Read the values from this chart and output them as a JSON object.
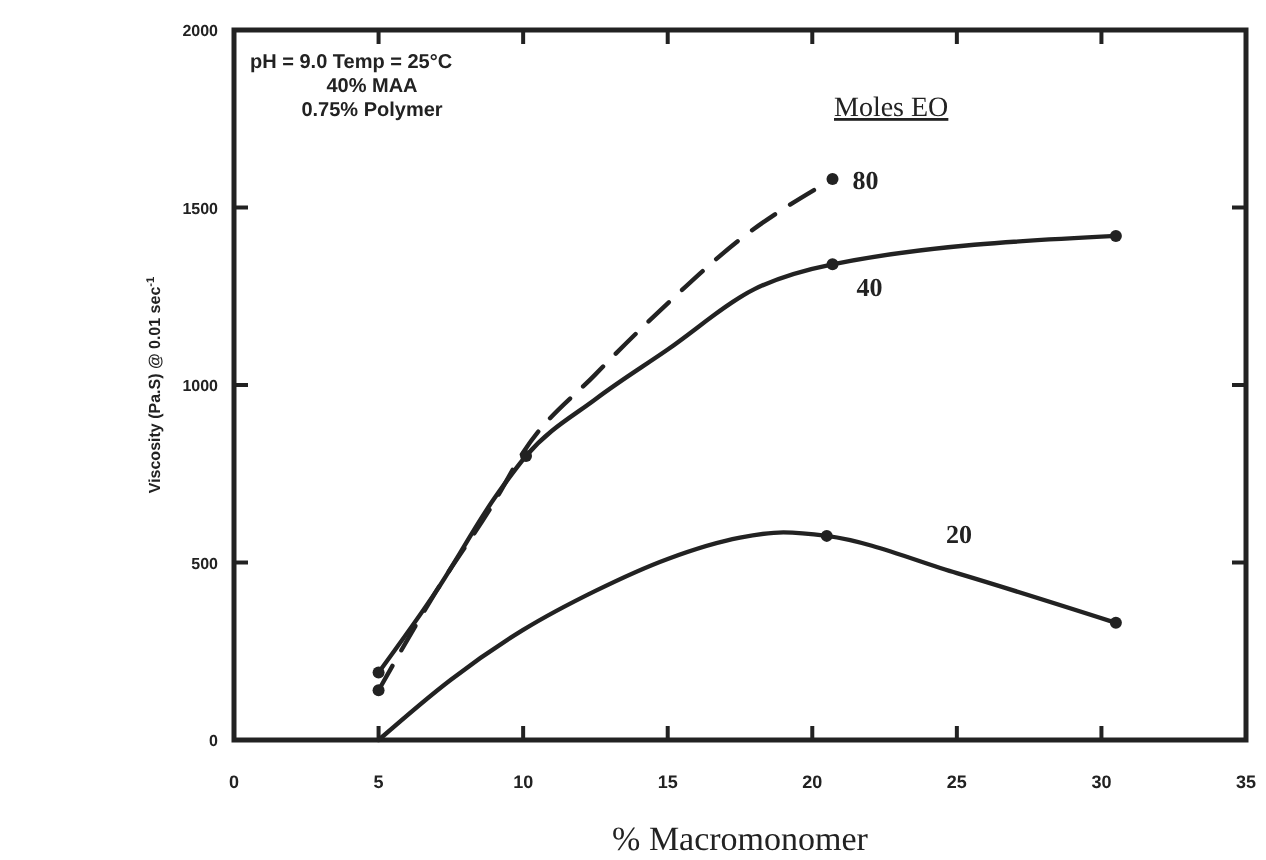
{
  "chart_data": {
    "type": "line",
    "xlabel": "% Macromonomer",
    "ylabel": "Viscosity (Pa.S) @ 0.01 sec$^{-1}$",
    "legend_title": "Moles EO",
    "xlim": [
      0,
      35
    ],
    "ylim": [
      0,
      2000
    ],
    "xticks": [
      0,
      5,
      10,
      15,
      20,
      25,
      30,
      35
    ],
    "yticks": [
      0,
      500,
      1000,
      1500,
      2000
    ],
    "grid": false,
    "marker": "none",
    "annotations": [
      "pH = 9.0 Temp = 25°C",
      "40% MAA",
      "0.75% Polymer"
    ],
    "series": [
      {
        "name": "80",
        "color": "#222222",
        "line_style": "dashed",
        "x": [
          5,
          7,
          9,
          10,
          12.5,
          15,
          17.5,
          20.7
        ],
        "values": [
          140,
          420,
          670,
          810,
          1030,
          1230,
          1410,
          1580
        ]
      },
      {
        "name": "40",
        "color": "#222222",
        "line_style": "solid",
        "x": [
          5,
          7,
          9,
          10.1,
          12.5,
          15,
          18,
          20.7,
          30.5
        ],
        "values": [
          190,
          420,
          680,
          800,
          960,
          1100,
          1270,
          1340,
          1420
        ]
      },
      {
        "name": "20",
        "color": "#222222",
        "line_style": "solid",
        "x": [
          5,
          7.5,
          10,
          12.5,
          15,
          17.5,
          19,
          20.5,
          25,
          30.5
        ],
        "values": [
          0,
          170,
          310,
          420,
          510,
          570,
          585,
          575,
          470,
          330
        ]
      },
      {
        "type": "scatter",
        "color": "#222222",
        "marker": "circle",
        "x": [
          5,
          5,
          10.1,
          20.7,
          30.5,
          20.5,
          30.5,
          20.7
        ],
        "values": [
          140,
          190,
          800,
          1340,
          1420,
          575,
          330,
          1580
        ]
      }
    ]
  }
}
